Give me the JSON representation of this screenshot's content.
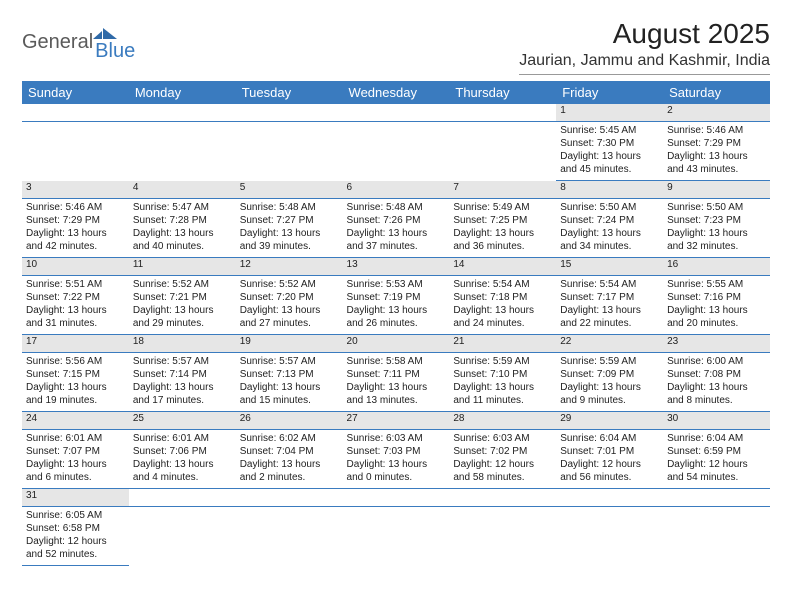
{
  "logo": {
    "general": "General",
    "blue": "Blue"
  },
  "title": "August 2025",
  "subtitle": "Jaurian, Jammu and Kashmir, India",
  "colors": {
    "header_bg": "#3a7bbf",
    "header_fg": "#ffffff",
    "daynum_bg": "#e6e6e6",
    "divider": "#3a7bbf",
    "text": "#222222"
  },
  "typography": {
    "title_fontsize": 28,
    "subtitle_fontsize": 16,
    "dayheader_fontsize": 13,
    "cell_fontsize": 10
  },
  "daysOfWeek": [
    "Sunday",
    "Monday",
    "Tuesday",
    "Wednesday",
    "Thursday",
    "Friday",
    "Saturday"
  ],
  "firstDayOffset": 5,
  "days": [
    {
      "n": 1,
      "sunrise": "5:45 AM",
      "sunset": "7:30 PM",
      "dlh": 13,
      "dlm": 45
    },
    {
      "n": 2,
      "sunrise": "5:46 AM",
      "sunset": "7:29 PM",
      "dlh": 13,
      "dlm": 43
    },
    {
      "n": 3,
      "sunrise": "5:46 AM",
      "sunset": "7:29 PM",
      "dlh": 13,
      "dlm": 42
    },
    {
      "n": 4,
      "sunrise": "5:47 AM",
      "sunset": "7:28 PM",
      "dlh": 13,
      "dlm": 40
    },
    {
      "n": 5,
      "sunrise": "5:48 AM",
      "sunset": "7:27 PM",
      "dlh": 13,
      "dlm": 39
    },
    {
      "n": 6,
      "sunrise": "5:48 AM",
      "sunset": "7:26 PM",
      "dlh": 13,
      "dlm": 37
    },
    {
      "n": 7,
      "sunrise": "5:49 AM",
      "sunset": "7:25 PM",
      "dlh": 13,
      "dlm": 36
    },
    {
      "n": 8,
      "sunrise": "5:50 AM",
      "sunset": "7:24 PM",
      "dlh": 13,
      "dlm": 34
    },
    {
      "n": 9,
      "sunrise": "5:50 AM",
      "sunset": "7:23 PM",
      "dlh": 13,
      "dlm": 32
    },
    {
      "n": 10,
      "sunrise": "5:51 AM",
      "sunset": "7:22 PM",
      "dlh": 13,
      "dlm": 31
    },
    {
      "n": 11,
      "sunrise": "5:52 AM",
      "sunset": "7:21 PM",
      "dlh": 13,
      "dlm": 29
    },
    {
      "n": 12,
      "sunrise": "5:52 AM",
      "sunset": "7:20 PM",
      "dlh": 13,
      "dlm": 27
    },
    {
      "n": 13,
      "sunrise": "5:53 AM",
      "sunset": "7:19 PM",
      "dlh": 13,
      "dlm": 26
    },
    {
      "n": 14,
      "sunrise": "5:54 AM",
      "sunset": "7:18 PM",
      "dlh": 13,
      "dlm": 24
    },
    {
      "n": 15,
      "sunrise": "5:54 AM",
      "sunset": "7:17 PM",
      "dlh": 13,
      "dlm": 22
    },
    {
      "n": 16,
      "sunrise": "5:55 AM",
      "sunset": "7:16 PM",
      "dlh": 13,
      "dlm": 20
    },
    {
      "n": 17,
      "sunrise": "5:56 AM",
      "sunset": "7:15 PM",
      "dlh": 13,
      "dlm": 19
    },
    {
      "n": 18,
      "sunrise": "5:57 AM",
      "sunset": "7:14 PM",
      "dlh": 13,
      "dlm": 17
    },
    {
      "n": 19,
      "sunrise": "5:57 AM",
      "sunset": "7:13 PM",
      "dlh": 13,
      "dlm": 15
    },
    {
      "n": 20,
      "sunrise": "5:58 AM",
      "sunset": "7:11 PM",
      "dlh": 13,
      "dlm": 13
    },
    {
      "n": 21,
      "sunrise": "5:59 AM",
      "sunset": "7:10 PM",
      "dlh": 13,
      "dlm": 11
    },
    {
      "n": 22,
      "sunrise": "5:59 AM",
      "sunset": "7:09 PM",
      "dlh": 13,
      "dlm": 9
    },
    {
      "n": 23,
      "sunrise": "6:00 AM",
      "sunset": "7:08 PM",
      "dlh": 13,
      "dlm": 8
    },
    {
      "n": 24,
      "sunrise": "6:01 AM",
      "sunset": "7:07 PM",
      "dlh": 13,
      "dlm": 6
    },
    {
      "n": 25,
      "sunrise": "6:01 AM",
      "sunset": "7:06 PM",
      "dlh": 13,
      "dlm": 4
    },
    {
      "n": 26,
      "sunrise": "6:02 AM",
      "sunset": "7:04 PM",
      "dlh": 13,
      "dlm": 2
    },
    {
      "n": 27,
      "sunrise": "6:03 AM",
      "sunset": "7:03 PM",
      "dlh": 13,
      "dlm": 0
    },
    {
      "n": 28,
      "sunrise": "6:03 AM",
      "sunset": "7:02 PM",
      "dlh": 12,
      "dlm": 58
    },
    {
      "n": 29,
      "sunrise": "6:04 AM",
      "sunset": "7:01 PM",
      "dlh": 12,
      "dlm": 56
    },
    {
      "n": 30,
      "sunrise": "6:04 AM",
      "sunset": "6:59 PM",
      "dlh": 12,
      "dlm": 54
    },
    {
      "n": 31,
      "sunrise": "6:05 AM",
      "sunset": "6:58 PM",
      "dlh": 12,
      "dlm": 52
    }
  ],
  "labels": {
    "sunrise": "Sunrise:",
    "sunset": "Sunset:",
    "daylight": "Daylight:",
    "hours": "hours",
    "and": "and",
    "minutes": "minutes."
  }
}
